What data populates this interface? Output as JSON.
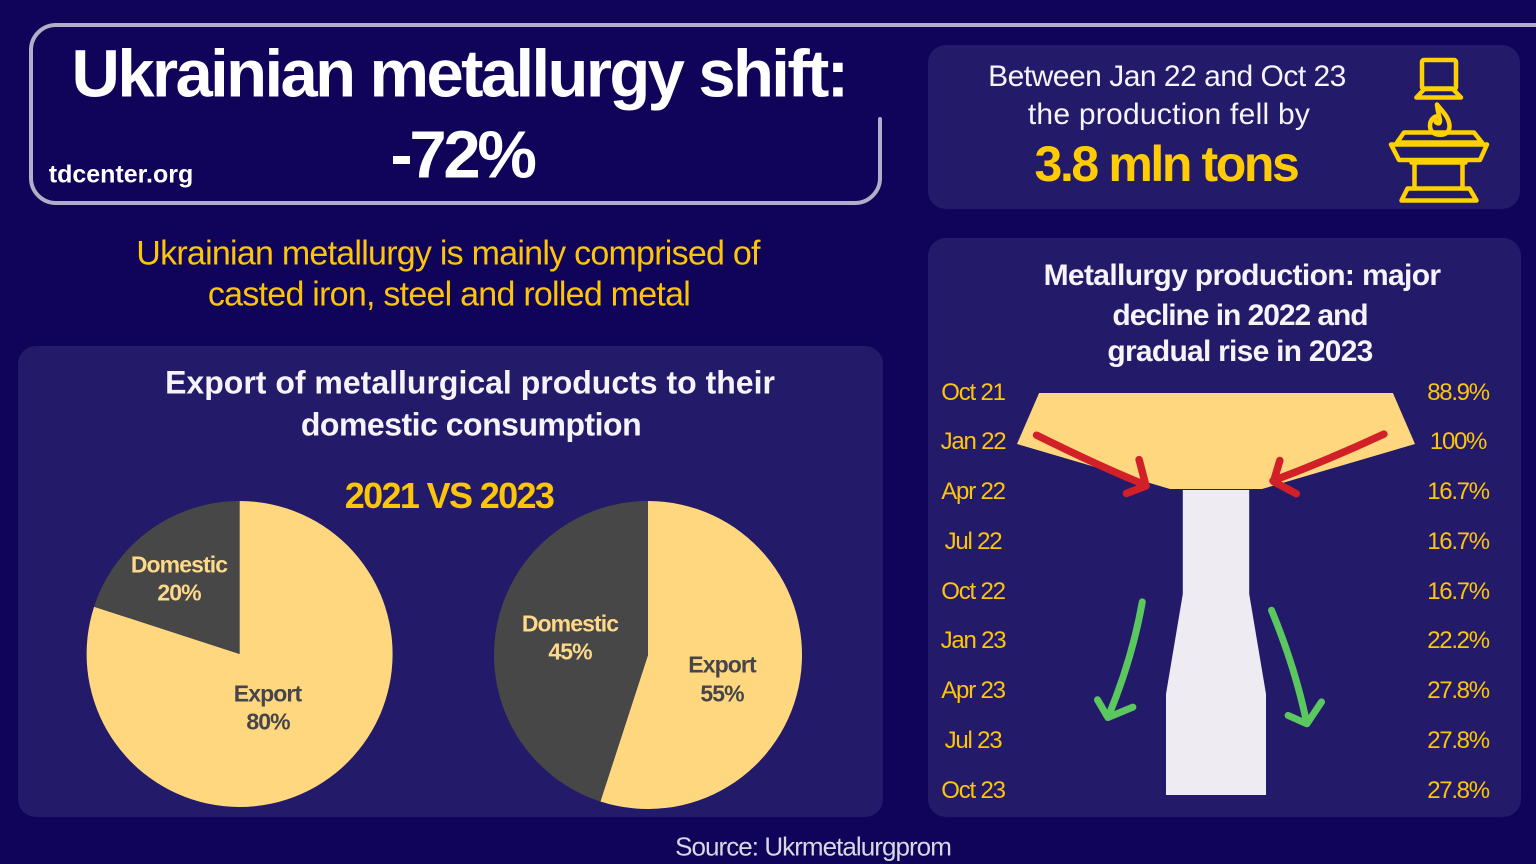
{
  "colors": {
    "background": "#0f0459",
    "panel": "#231b6a",
    "outline": "#b3aec8",
    "white_text": "#ffffff",
    "gold_text": "#fdc50a",
    "value_gold": "#ffcb05",
    "funnel_yellow": "#fed77e",
    "funnel_white": "#eeecf2",
    "pie_dark": "#474747",
    "arrow_red": "#d22029",
    "arrow_green": "#5bc75f",
    "source_text": "#d9d7e4"
  },
  "header": {
    "title_line1": "Ukrainian metallurgy shift:",
    "title_line2": "-72%",
    "logo_text": "tdcenter.org"
  },
  "subtitle": {
    "line1": "Ukrainian metallurgy is mainly comprised of",
    "line2": "casted iron, steel and rolled metal"
  },
  "stat_card": {
    "line1": "Between Jan 22 and Oct 23",
    "line2": "the production fell by",
    "value": "3.8 mln tons",
    "icon": "memorial-flame-podium-icon"
  },
  "export_panel": {
    "heading_line1": "Export of metallurgical products to their",
    "heading_line2": "domestic consumption",
    "versus": "2021 VS 2023"
  },
  "production_panel": {
    "title_line1": "Metallurgy production: major",
    "title_line2": "decline in 2022 and",
    "title_line3": "gradual rise in 2023"
  },
  "footer": {
    "source": "Source: Ukrmetalurgprom"
  },
  "chart_data": [
    {
      "type": "pie",
      "name": "export-vs-domestic-2021",
      "year": "2021",
      "slices": [
        {
          "label": "Domestic",
          "value": 20,
          "display": "20%",
          "color": "#474747"
        },
        {
          "label": "Export",
          "value": 80,
          "display": "80%",
          "color": "#fed77e"
        }
      ],
      "start_angle": "12 o'clock",
      "direction": "counterclockwise"
    },
    {
      "type": "pie",
      "name": "export-vs-domestic-2023",
      "year": "2023",
      "slices": [
        {
          "label": "Domestic",
          "value": 45,
          "display": "45%",
          "color": "#474747"
        },
        {
          "label": "Export",
          "value": 55,
          "display": "55%",
          "color": "#fed77e"
        }
      ],
      "start_angle": "12 o'clock",
      "direction": "counterclockwise"
    },
    {
      "type": "funnel",
      "name": "metallurgy-production-timeline",
      "title": "Metallurgy production: major decline in 2022 and gradual rise in 2023",
      "categories": [
        "Oct 21",
        "Jan 22",
        "Apr 22",
        "Jul 22",
        "Oct 22",
        "Jan 23",
        "Apr 23",
        "Jul 23",
        "Oct 23"
      ],
      "values": [
        88.9,
        100,
        16.7,
        16.7,
        16.7,
        22.2,
        27.8,
        27.8,
        27.8
      ],
      "labels": [
        "88.9%",
        "100%",
        "16.7%",
        "16.7%",
        "16.7%",
        "22.2%",
        "27.8%",
        "27.8%",
        "27.8%"
      ],
      "decline_color": "#fed77e",
      "recovery_color": "#eeecf2"
    }
  ]
}
